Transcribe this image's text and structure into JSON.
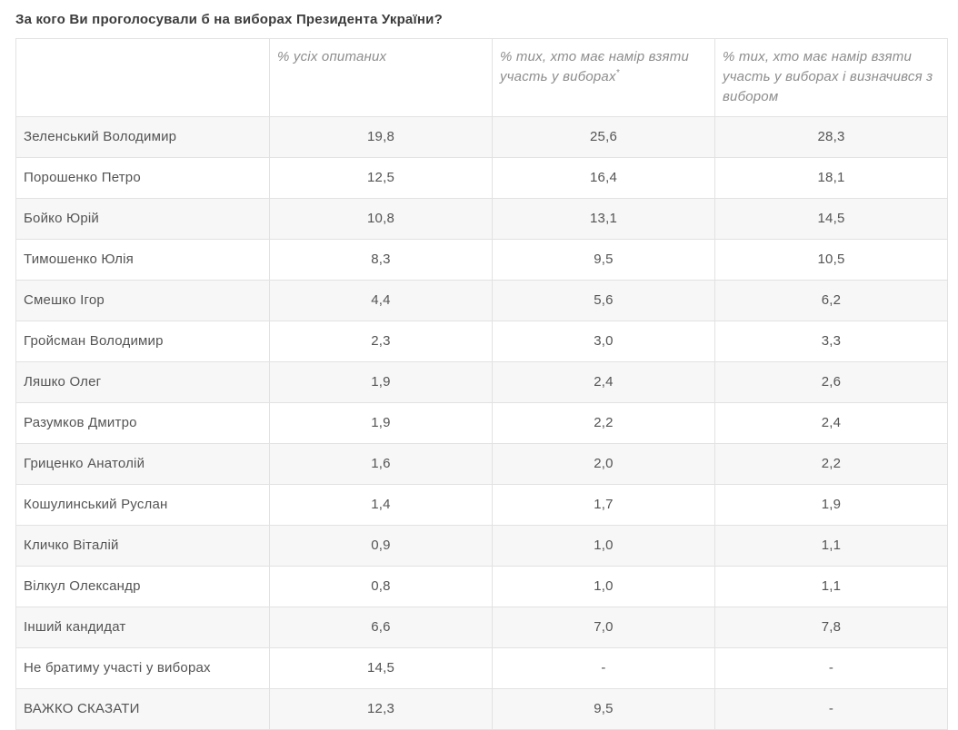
{
  "page": {
    "title": "За кого Ви проголосували б на виборах Президента України?"
  },
  "theme": {
    "title_color": "#3c3c3c",
    "header_text_color": "#8d8d8d",
    "cell_text_color": "#545454",
    "border_color": "#e2e2e2",
    "stripe_color": "#f7f7f7",
    "background_color": "#ffffff"
  },
  "table": {
    "columns": [
      {
        "label": ""
      },
      {
        "label": "% усіх опитаних"
      },
      {
        "label": "% тих, хто має намір взяти участь у виборах",
        "sup": "*"
      },
      {
        "label": "% тих, хто має намір взяти участь у виборах і визначився з вибором"
      }
    ],
    "rows": [
      {
        "name": "Зеленський Володимир",
        "values": [
          "19,8",
          "25,6",
          "28,3"
        ]
      },
      {
        "name": "Порошенко Петро",
        "values": [
          "12,5",
          "16,4",
          "18,1"
        ]
      },
      {
        "name": "Бойко Юрій",
        "values": [
          "10,8",
          "13,1",
          "14,5"
        ]
      },
      {
        "name": "Тимошенко Юлія",
        "values": [
          "8,3",
          "9,5",
          "10,5"
        ]
      },
      {
        "name": "Смешко Ігор",
        "values": [
          "4,4",
          "5,6",
          "6,2"
        ]
      },
      {
        "name": "Гройсман Володимир",
        "values": [
          "2,3",
          "3,0",
          "3,3"
        ]
      },
      {
        "name": "Ляшко Олег",
        "values": [
          "1,9",
          "2,4",
          "2,6"
        ]
      },
      {
        "name": "Разумков Дмитро",
        "values": [
          "1,9",
          "2,2",
          "2,4"
        ]
      },
      {
        "name": "Гриценко Анатолій",
        "values": [
          "1,6",
          "2,0",
          "2,2"
        ]
      },
      {
        "name": "Кошулинський Руслан",
        "values": [
          "1,4",
          "1,7",
          "1,9"
        ]
      },
      {
        "name": "Кличко Віталій",
        "values": [
          "0,9",
          "1,0",
          "1,1"
        ]
      },
      {
        "name": "Вілкул Олександр",
        "values": [
          "0,8",
          "1,0",
          "1,1"
        ]
      },
      {
        "name": "Інший кандидат",
        "values": [
          "6,6",
          "7,0",
          "7,8"
        ]
      },
      {
        "name": "Не братиму участі у виборах",
        "values": [
          "14,5",
          "-",
          "-"
        ]
      },
      {
        "name": "ВАЖКО СКАЗАТИ",
        "values": [
          "12,3",
          "9,5",
          "-"
        ]
      }
    ]
  },
  "chart_data": {
    "type": "table",
    "title": "За кого Ви проголосували б на виборах Президента України?",
    "columns": [
      "",
      "% усіх опитаних",
      "% тих, хто має намір взяти участь у виборах*",
      "% тих, хто має намір взяти участь у виборах і визначився з вибором"
    ],
    "rows": [
      [
        "Зеленський Володимир",
        19.8,
        25.6,
        28.3
      ],
      [
        "Порошенко Петро",
        12.5,
        16.4,
        18.1
      ],
      [
        "Бойко Юрій",
        10.8,
        13.1,
        14.5
      ],
      [
        "Тимошенко Юлія",
        8.3,
        9.5,
        10.5
      ],
      [
        "Смешко Ігор",
        4.4,
        5.6,
        6.2
      ],
      [
        "Гройсман Володимир",
        2.3,
        3.0,
        3.3
      ],
      [
        "Ляшко Олег",
        1.9,
        2.4,
        2.6
      ],
      [
        "Разумков Дмитро",
        1.9,
        2.2,
        2.4
      ],
      [
        "Гриценко Анатолій",
        1.6,
        2.0,
        2.2
      ],
      [
        "Кошулинський Руслан",
        1.4,
        1.7,
        1.9
      ],
      [
        "Кличко Віталій",
        0.9,
        1.0,
        1.1
      ],
      [
        "Вілкул Олександр",
        0.8,
        1.0,
        1.1
      ],
      [
        "Інший кандидат",
        6.6,
        7.0,
        7.8
      ],
      [
        "Не братиму участі у виборах",
        14.5,
        null,
        null
      ],
      [
        "ВАЖКО СКАЗАТИ",
        12.3,
        9.5,
        null
      ]
    ],
    "notes": "Decimal comma formatting; null rendered as '-'"
  }
}
